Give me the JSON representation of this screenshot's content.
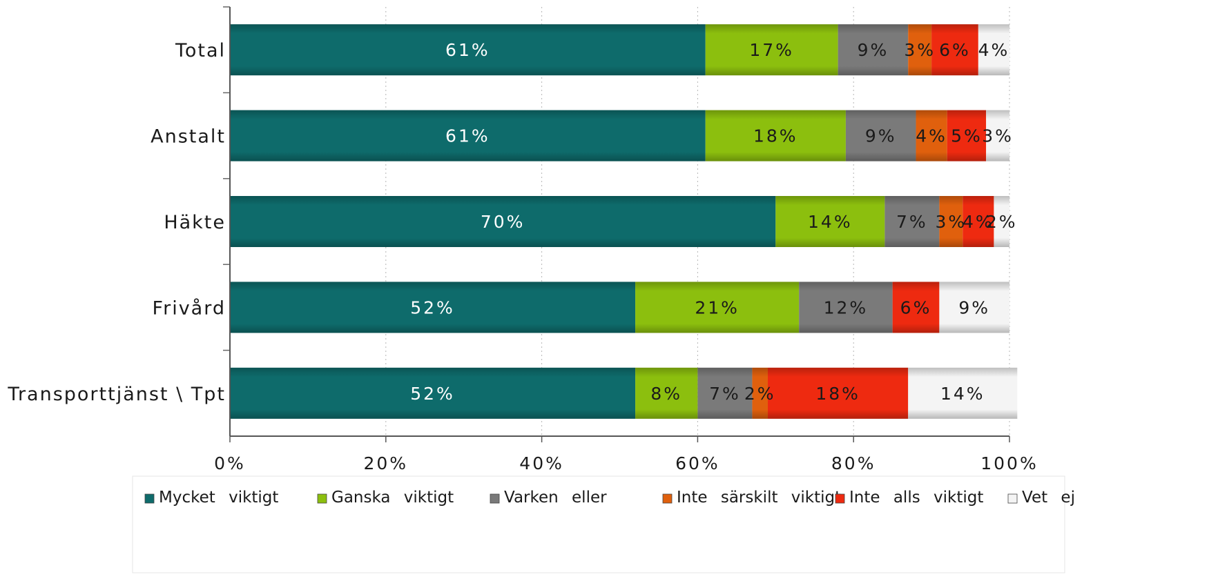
{
  "chart_data": {
    "type": "bar",
    "orientation": "horizontal",
    "stacked": true,
    "percent_stacked": true,
    "categories": [
      "Total",
      "Anstalt",
      "Häkte",
      "Frivård",
      "Transporttjänst \\ Tpt"
    ],
    "series": [
      {
        "name": "Mycket viktigt",
        "color": "#0e6b6b",
        "values": [
          61,
          61,
          70,
          52,
          52
        ],
        "labels": [
          "61%",
          "61%",
          "70%",
          "52%",
          "52%"
        ]
      },
      {
        "name": "Ganska viktigt",
        "color": "#8cbf0e",
        "values": [
          17,
          18,
          14,
          21,
          8
        ],
        "labels": [
          "17%",
          "18%",
          "14%",
          "21%",
          "8%"
        ]
      },
      {
        "name": "Varken eller",
        "color": "#7a7a7a",
        "values": [
          9,
          9,
          7,
          12,
          7
        ],
        "labels": [
          "9%",
          "9%",
          "7%",
          "12%",
          "7%"
        ]
      },
      {
        "name": "Inte särskilt viktigt",
        "color": "#e0600d",
        "values": [
          3,
          4,
          3,
          0,
          2
        ],
        "labels": [
          "3%",
          "4%",
          "3%",
          "",
          "2%"
        ]
      },
      {
        "name": "Inte alls viktigt",
        "color": "#ee2a10",
        "values": [
          6,
          5,
          4,
          6,
          18
        ],
        "labels": [
          "6%",
          "5%",
          "4%",
          "6%",
          "18%"
        ]
      },
      {
        "name": "Vet ej",
        "color": "#f4f4f4",
        "values": [
          4,
          3,
          2,
          9,
          14
        ],
        "labels": [
          "4%",
          "3%",
          "2%",
          "9%",
          "14%"
        ]
      }
    ],
    "xlim": [
      0,
      100
    ],
    "x_ticks": [
      "0%",
      "20%",
      "40%",
      "60%",
      "80%",
      "100%"
    ],
    "grid": "vertical-dotted",
    "legend_position": "bottom",
    "legend_labels": [
      "Mycket viktigt",
      "Ganska viktigt",
      "Varken eller",
      "Inte särskilt viktigt",
      "Inte alls viktigt",
      "Vet ej"
    ]
  }
}
